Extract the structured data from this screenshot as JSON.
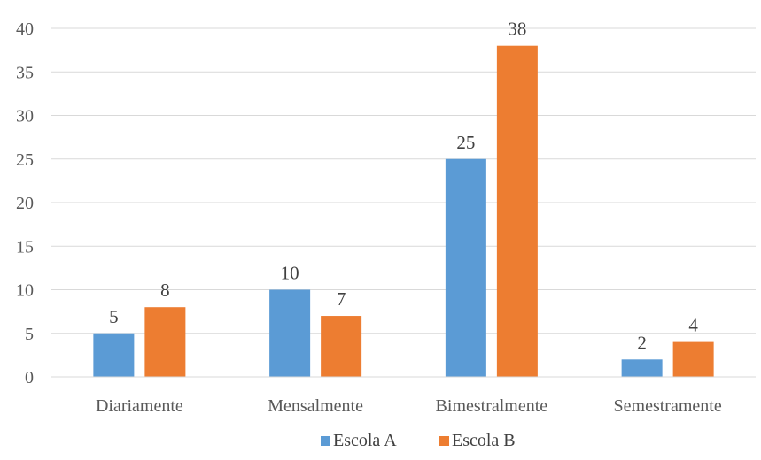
{
  "chart_data": {
    "type": "bar",
    "categories": [
      "Diariamente",
      "Mensalmente",
      "Bimestralmente",
      "Semestramente"
    ],
    "series": [
      {
        "name": "Escola A",
        "values": [
          5,
          10,
          25,
          2
        ],
        "color": "#5B9BD5"
      },
      {
        "name": "Escola B",
        "values": [
          8,
          7,
          38,
          4
        ],
        "color": "#ED7D31"
      }
    ],
    "ylim": [
      0,
      40
    ],
    "yticks": [
      0,
      5,
      10,
      15,
      20,
      25,
      30,
      35,
      40
    ],
    "grid": true,
    "legend_position": "bottom",
    "title": "",
    "xlabel": "",
    "ylabel": ""
  }
}
